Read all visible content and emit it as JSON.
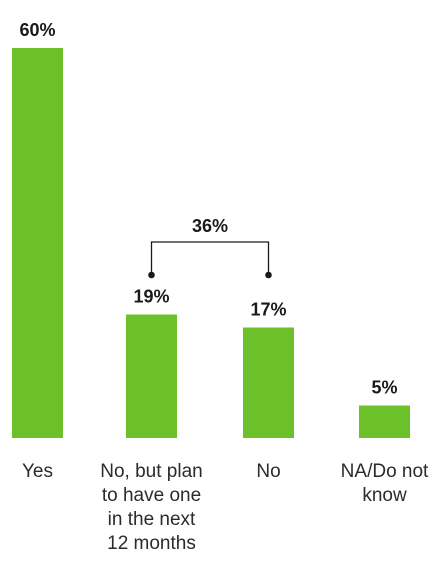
{
  "chart_data": {
    "type": "bar",
    "categories": [
      "Yes",
      "No, but plan to have one in the next 12 months",
      "No",
      "NA/Do not know"
    ],
    "category_label_lines": [
      [
        "Yes"
      ],
      [
        "No, but plan",
        "to have one",
        "in the next",
        "12 months"
      ],
      [
        "No"
      ],
      [
        "NA/Do not",
        "know"
      ]
    ],
    "values": [
      60,
      19,
      17,
      5
    ],
    "value_labels": [
      "60%",
      "19%",
      "17%",
      "5%"
    ],
    "bar_color": "#6cc02a",
    "ylim": [
      0,
      60
    ],
    "grid": false,
    "annotations": [
      {
        "type": "bracket",
        "spans": [
          1,
          2
        ],
        "label": "36%"
      }
    ]
  }
}
